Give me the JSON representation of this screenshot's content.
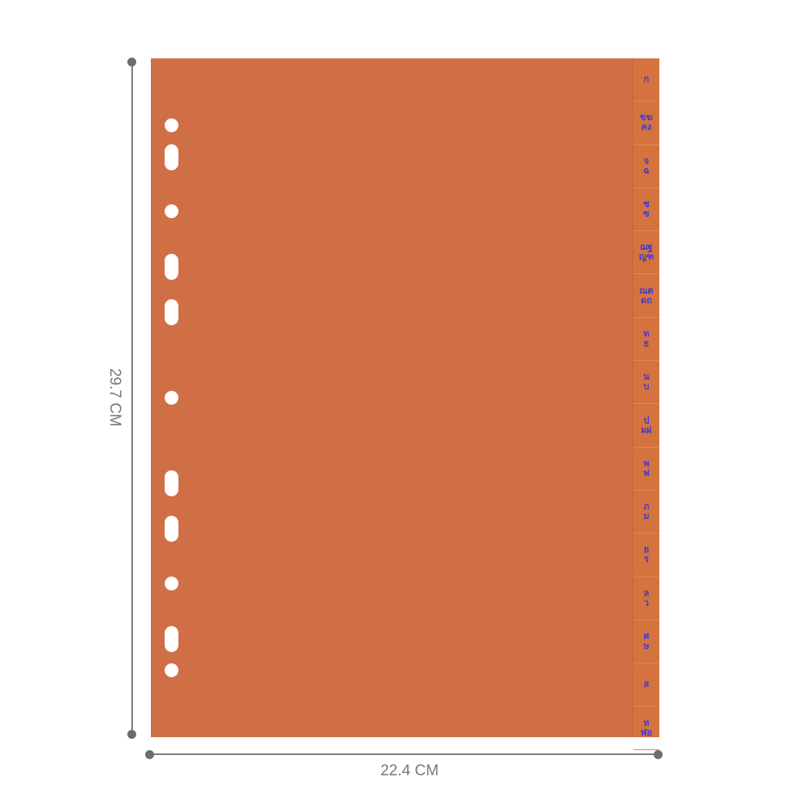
{
  "colors": {
    "sheet": "#d06f45",
    "tab_text": "#3d3ad8",
    "dimension_line": "#7b7b7b"
  },
  "dimensions": {
    "height": "29.7 CM",
    "width": "22.4 CM"
  },
  "tabs": [
    [
      "ก"
    ],
    [
      "ขฆ",
      "คง"
    ],
    [
      "จ",
      "ฉ"
    ],
    [
      "ช",
      "ซ"
    ],
    [
      "ฌฐ",
      "ญฑ"
    ],
    [
      "ณต",
      "ดถ"
    ],
    [
      "ท",
      "ธ"
    ],
    [
      "น",
      "บ"
    ],
    [
      "ป",
      "ผฝ"
    ],
    [
      "พ",
      "ฟ"
    ],
    [
      "ภ",
      "ม"
    ],
    [
      "ย",
      "ร"
    ],
    [
      "ล",
      "ว"
    ],
    [
      "ศ",
      "ษ"
    ],
    [
      "ส"
    ],
    [
      "ห",
      "ฬอ"
    ]
  ],
  "holes": [
    "round",
    "long",
    "round",
    "long",
    "long",
    "round",
    "long",
    "long",
    "round",
    "long",
    "round"
  ]
}
